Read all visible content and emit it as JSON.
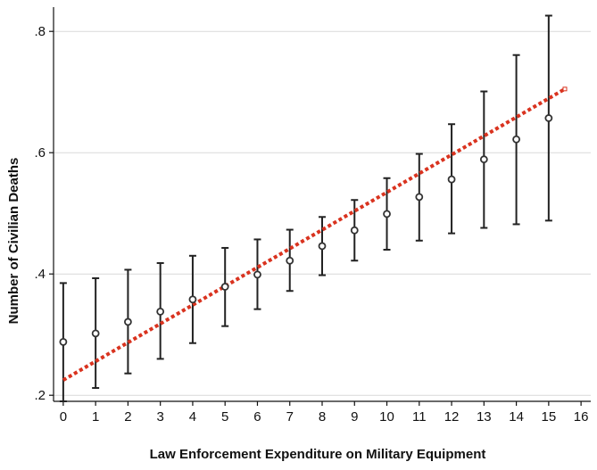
{
  "chart_data": {
    "type": "scatter",
    "title": "",
    "xlabel": "Law Enforcement Expenditure on Military Equipment",
    "ylabel": "Number of Civilian Deaths",
    "xlim": [
      -0.3,
      16.3
    ],
    "ylim": [
      0.19,
      0.84
    ],
    "x_ticks": [
      "0",
      "1",
      "2",
      "3",
      "4",
      "5",
      "6",
      "7",
      "8",
      "9",
      "10",
      "11",
      "12",
      "13",
      "14",
      "15",
      "16"
    ],
    "y_ticks": [
      ".2",
      ".4",
      ".6",
      ".8"
    ],
    "y_tick_values": [
      0.2,
      0.4,
      0.6,
      0.8
    ],
    "grid": true,
    "legend": "none",
    "colors": {
      "point": "#333333",
      "errorbar": "#222222",
      "fit": "#d9331f",
      "axis": "#111111",
      "grid": "#d9d9d9"
    },
    "series": [
      {
        "x": [
          0,
          1,
          2,
          3,
          4,
          5,
          6,
          7,
          8,
          9,
          10,
          11,
          12,
          13,
          14,
          15
        ],
        "y": [
          0.288,
          0.302,
          0.321,
          0.338,
          0.358,
          0.379,
          0.399,
          0.422,
          0.446,
          0.472,
          0.499,
          0.527,
          0.556,
          0.589,
          0.622,
          0.657
        ],
        "lower": [
          0.19,
          0.212,
          0.236,
          0.26,
          0.286,
          0.314,
          0.342,
          0.372,
          0.398,
          0.422,
          0.44,
          0.455,
          0.467,
          0.476,
          0.482,
          0.488
        ],
        "upper": [
          0.385,
          0.393,
          0.407,
          0.418,
          0.43,
          0.443,
          0.457,
          0.473,
          0.494,
          0.522,
          0.558,
          0.598,
          0.647,
          0.701,
          0.761,
          0.826
        ]
      }
    ],
    "fit_line": {
      "x": [
        0,
        15.5
      ],
      "y": [
        0.225,
        0.705
      ]
    }
  }
}
